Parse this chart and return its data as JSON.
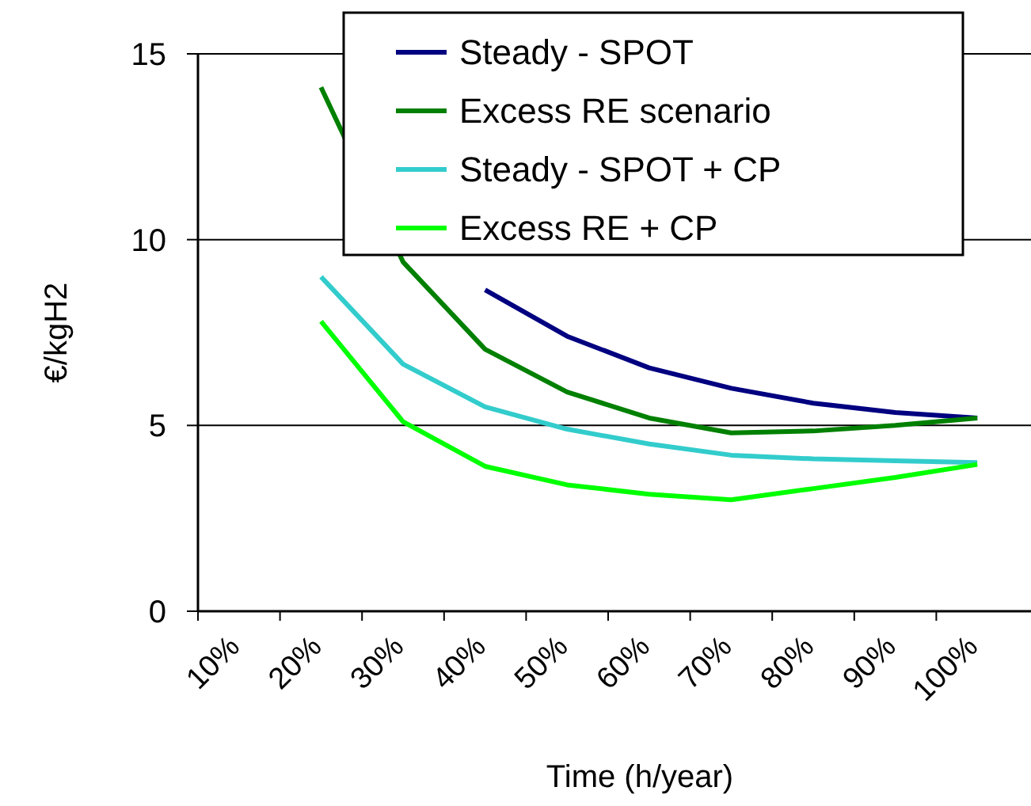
{
  "chart_data": {
    "type": "line",
    "xlabel": "Time (h/year)",
    "ylabel": "€/kgH2",
    "categories": [
      "10%",
      "20%",
      "30%",
      "40%",
      "50%",
      "60%",
      "70%",
      "80%",
      "90%",
      "100%"
    ],
    "ylim": [
      0,
      15
    ],
    "yticks": [
      0,
      5,
      10,
      15
    ],
    "grid": "y",
    "legend": "top right",
    "marker": "none",
    "line_style": "solid",
    "series": [
      {
        "name": "Steady - SPOT",
        "color": "#000080",
        "values": [
          null,
          null,
          null,
          8.65,
          7.4,
          6.55,
          6.0,
          5.6,
          5.35,
          5.2
        ]
      },
      {
        "name": "Excess RE scenario",
        "color": "#008000",
        "values": [
          null,
          14.1,
          9.4,
          7.05,
          5.9,
          5.2,
          4.8,
          4.85,
          5.0,
          5.2
        ]
      },
      {
        "name": "Steady - SPOT + CP",
        "color": "#33cccc",
        "values": [
          null,
          9.0,
          6.65,
          5.5,
          4.9,
          4.5,
          4.2,
          4.1,
          4.05,
          4.0
        ]
      },
      {
        "name": "Excess RE + CP",
        "color": "#00ff00",
        "values": [
          null,
          7.8,
          5.1,
          3.9,
          3.4,
          3.15,
          3.0,
          3.3,
          3.6,
          3.95
        ]
      }
    ]
  }
}
